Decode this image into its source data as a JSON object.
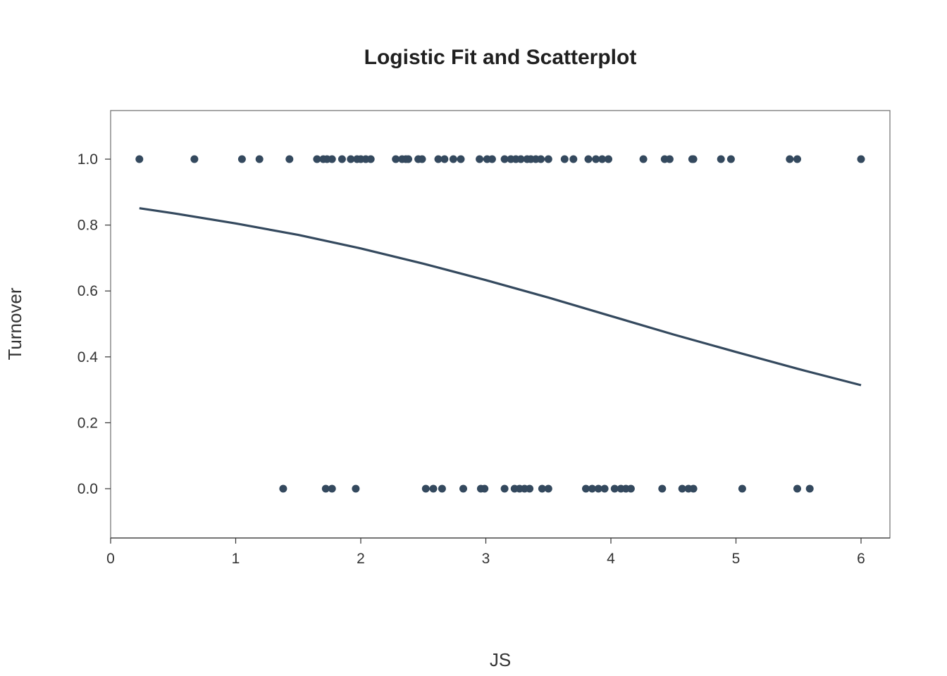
{
  "chart_data": {
    "type": "scatter",
    "title": "Logistic Fit and Scatterplot",
    "xlabel": "JS",
    "ylabel": "Turnover",
    "xlim": [
      0,
      6.24
    ],
    "ylim": [
      -0.147,
      1.147
    ],
    "x_ticks": [
      0,
      1,
      2,
      3,
      4,
      5,
      6
    ],
    "x_tick_labels": [
      "0",
      "1",
      "2",
      "3",
      "4",
      "5",
      "6"
    ],
    "y_ticks": [
      0.0,
      0.2,
      0.4,
      0.6,
      0.8,
      1.0
    ],
    "y_tick_labels": [
      "0.0",
      "0.2",
      "0.4",
      "0.6",
      "0.8",
      "1.0"
    ],
    "grid": false,
    "color": "#34495e",
    "series": [
      {
        "kind": "points",
        "points": [
          {
            "x": 0.23,
            "y": 1
          },
          {
            "x": 0.67,
            "y": 1
          },
          {
            "x": 1.05,
            "y": 1
          },
          {
            "x": 1.19,
            "y": 1
          },
          {
            "x": 1.43,
            "y": 1
          },
          {
            "x": 1.65,
            "y": 1
          },
          {
            "x": 1.7,
            "y": 1
          },
          {
            "x": 1.73,
            "y": 1
          },
          {
            "x": 1.77,
            "y": 1
          },
          {
            "x": 1.85,
            "y": 1
          },
          {
            "x": 1.92,
            "y": 1
          },
          {
            "x": 1.97,
            "y": 1
          },
          {
            "x": 2.0,
            "y": 1
          },
          {
            "x": 2.04,
            "y": 1
          },
          {
            "x": 2.08,
            "y": 1
          },
          {
            "x": 2.28,
            "y": 1
          },
          {
            "x": 2.33,
            "y": 1
          },
          {
            "x": 2.36,
            "y": 1
          },
          {
            "x": 2.38,
            "y": 1
          },
          {
            "x": 2.46,
            "y": 1
          },
          {
            "x": 2.49,
            "y": 1
          },
          {
            "x": 2.62,
            "y": 1
          },
          {
            "x": 2.67,
            "y": 1
          },
          {
            "x": 2.74,
            "y": 1
          },
          {
            "x": 2.8,
            "y": 1
          },
          {
            "x": 2.95,
            "y": 1
          },
          {
            "x": 3.01,
            "y": 1
          },
          {
            "x": 3.05,
            "y": 1
          },
          {
            "x": 3.15,
            "y": 1
          },
          {
            "x": 3.2,
            "y": 1
          },
          {
            "x": 3.24,
            "y": 1
          },
          {
            "x": 3.28,
            "y": 1
          },
          {
            "x": 3.33,
            "y": 1
          },
          {
            "x": 3.36,
            "y": 1
          },
          {
            "x": 3.4,
            "y": 1
          },
          {
            "x": 3.44,
            "y": 1
          },
          {
            "x": 3.5,
            "y": 1
          },
          {
            "x": 3.63,
            "y": 1
          },
          {
            "x": 3.7,
            "y": 1
          },
          {
            "x": 3.82,
            "y": 1
          },
          {
            "x": 3.88,
            "y": 1
          },
          {
            "x": 3.93,
            "y": 1
          },
          {
            "x": 3.98,
            "y": 1
          },
          {
            "x": 4.26,
            "y": 1
          },
          {
            "x": 4.43,
            "y": 1
          },
          {
            "x": 4.47,
            "y": 1
          },
          {
            "x": 4.65,
            "y": 1
          },
          {
            "x": 4.66,
            "y": 1
          },
          {
            "x": 4.88,
            "y": 1
          },
          {
            "x": 4.96,
            "y": 1
          },
          {
            "x": 5.43,
            "y": 1
          },
          {
            "x": 5.49,
            "y": 1
          },
          {
            "x": 6.0,
            "y": 1
          },
          {
            "x": 1.38,
            "y": 0
          },
          {
            "x": 1.72,
            "y": 0
          },
          {
            "x": 1.77,
            "y": 0
          },
          {
            "x": 1.96,
            "y": 0
          },
          {
            "x": 2.52,
            "y": 0
          },
          {
            "x": 2.58,
            "y": 0
          },
          {
            "x": 2.65,
            "y": 0
          },
          {
            "x": 2.82,
            "y": 0
          },
          {
            "x": 2.96,
            "y": 0
          },
          {
            "x": 2.99,
            "y": 0
          },
          {
            "x": 3.15,
            "y": 0
          },
          {
            "x": 3.23,
            "y": 0
          },
          {
            "x": 3.27,
            "y": 0
          },
          {
            "x": 3.31,
            "y": 0
          },
          {
            "x": 3.35,
            "y": 0
          },
          {
            "x": 3.45,
            "y": 0
          },
          {
            "x": 3.5,
            "y": 0
          },
          {
            "x": 3.8,
            "y": 0
          },
          {
            "x": 3.85,
            "y": 0
          },
          {
            "x": 3.9,
            "y": 0
          },
          {
            "x": 3.95,
            "y": 0
          },
          {
            "x": 4.03,
            "y": 0
          },
          {
            "x": 4.08,
            "y": 0
          },
          {
            "x": 4.12,
            "y": 0
          },
          {
            "x": 4.16,
            "y": 0
          },
          {
            "x": 4.41,
            "y": 0
          },
          {
            "x": 4.57,
            "y": 0
          },
          {
            "x": 4.62,
            "y": 0
          },
          {
            "x": 4.66,
            "y": 0
          },
          {
            "x": 5.05,
            "y": 0
          },
          {
            "x": 5.49,
            "y": 0
          },
          {
            "x": 5.59,
            "y": 0
          }
        ]
      },
      {
        "kind": "fit_line",
        "points": [
          {
            "x": 0.23,
            "y": 0.851
          },
          {
            "x": 0.5,
            "y": 0.836
          },
          {
            "x": 1.0,
            "y": 0.805
          },
          {
            "x": 1.5,
            "y": 0.77
          },
          {
            "x": 2.0,
            "y": 0.729
          },
          {
            "x": 2.5,
            "y": 0.683
          },
          {
            "x": 3.0,
            "y": 0.633
          },
          {
            "x": 3.5,
            "y": 0.58
          },
          {
            "x": 4.0,
            "y": 0.524
          },
          {
            "x": 4.5,
            "y": 0.468
          },
          {
            "x": 5.0,
            "y": 0.415
          },
          {
            "x": 5.5,
            "y": 0.363
          },
          {
            "x": 6.0,
            "y": 0.314
          }
        ]
      }
    ]
  }
}
